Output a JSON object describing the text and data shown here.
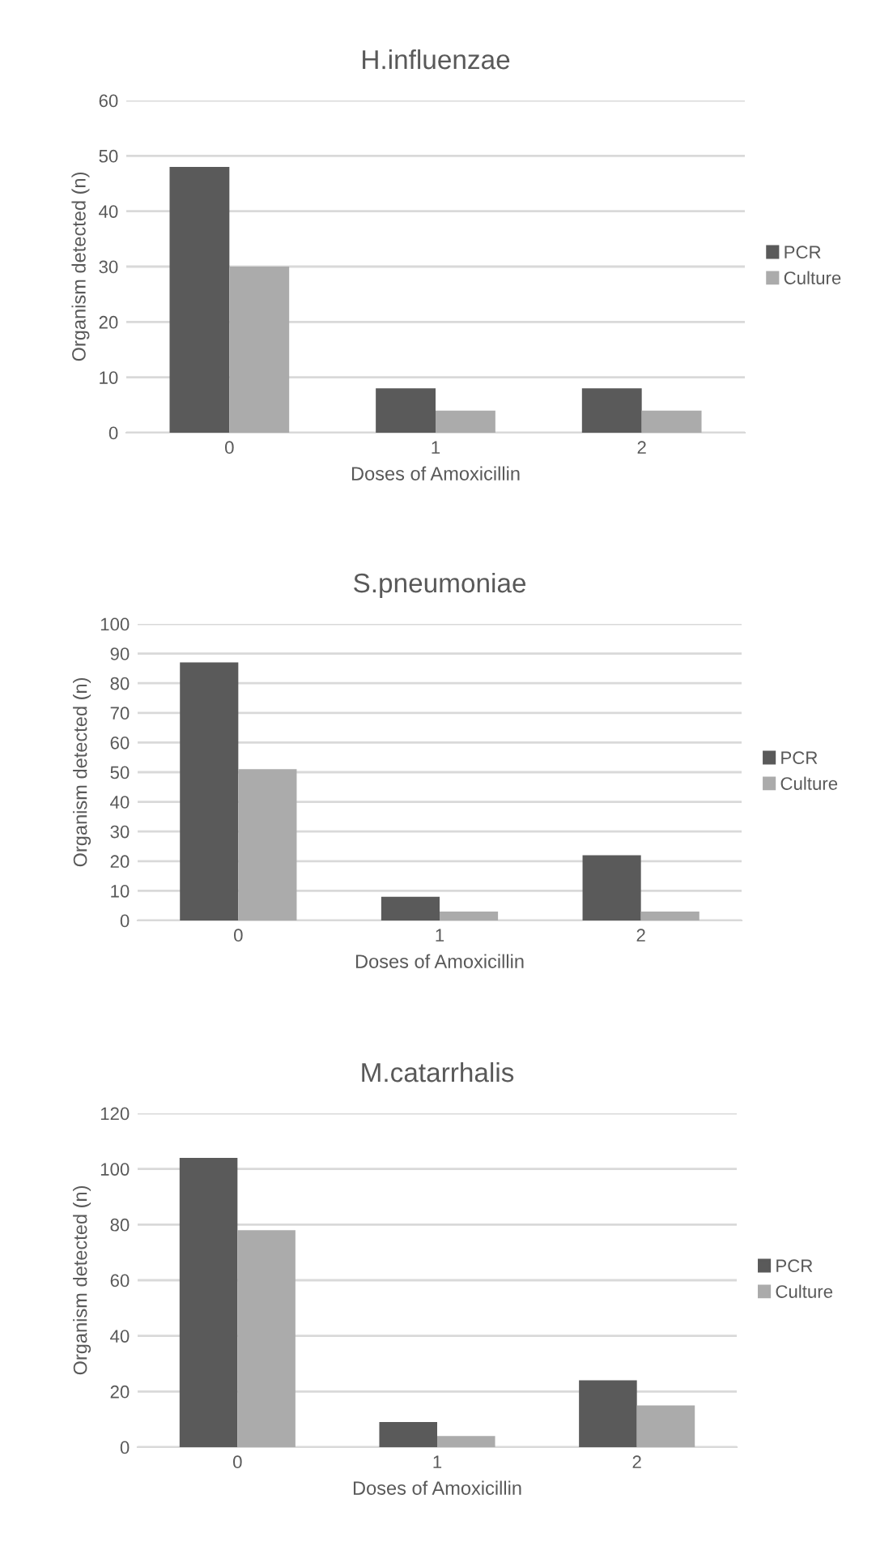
{
  "chart_data": [
    {
      "type": "bar",
      "title": "H.influenzae",
      "xlabel": "Doses of Amoxicillin",
      "ylabel": "Organism detected (n)",
      "categories": [
        "0",
        "1",
        "2"
      ],
      "series": [
        {
          "name": "PCR",
          "color": "#5a5a5a",
          "values": [
            48,
            8,
            8
          ]
        },
        {
          "name": "Culture",
          "color": "#ababab",
          "values": [
            30,
            4,
            4
          ]
        }
      ],
      "ylim": [
        0,
        60
      ],
      "yticks": [
        0,
        10,
        20,
        30,
        40,
        50,
        60
      ],
      "grid": "y",
      "legend": "right"
    },
    {
      "type": "bar",
      "title": "S.pneumoniae",
      "xlabel": "Doses of Amoxicillin",
      "ylabel": "Organism detected (n)",
      "categories": [
        "0",
        "1",
        "2"
      ],
      "series": [
        {
          "name": "PCR",
          "color": "#5a5a5a",
          "values": [
            87,
            8,
            22
          ]
        },
        {
          "name": "Culture",
          "color": "#ababab",
          "values": [
            51,
            3,
            3
          ]
        }
      ],
      "ylim": [
        0,
        100
      ],
      "yticks": [
        0,
        10,
        20,
        30,
        40,
        50,
        60,
        70,
        80,
        90,
        100
      ],
      "grid": "y",
      "legend": "right"
    },
    {
      "type": "bar",
      "title": "M.catarrhalis",
      "xlabel": "Doses of Amoxicillin",
      "ylabel": "Organism detected (n)",
      "categories": [
        "0",
        "1",
        "2"
      ],
      "series": [
        {
          "name": "PCR",
          "color": "#5a5a5a",
          "values": [
            104,
            9,
            24
          ]
        },
        {
          "name": "Culture",
          "color": "#ababab",
          "values": [
            78,
            4,
            15
          ]
        }
      ],
      "ylim": [
        0,
        120
      ],
      "yticks": [
        0,
        20,
        40,
        60,
        80,
        100,
        120
      ],
      "grid": "y",
      "legend": "right"
    }
  ]
}
